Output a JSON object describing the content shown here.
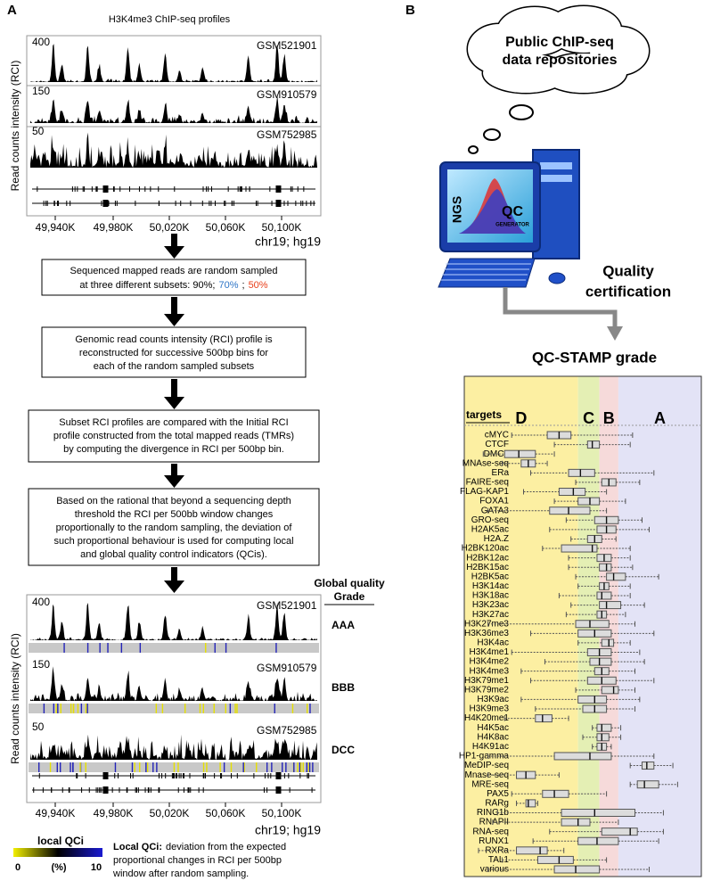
{
  "panel_a": {
    "label": "A",
    "title": "H3K4me3 ChIP-seq profiles",
    "y_axis_label": "Read counts intensity (RCI)",
    "tracks": [
      {
        "scale": "400",
        "sample": "GSM521901",
        "grade": "AAA"
      },
      {
        "scale": "150",
        "sample": "GSM910579",
        "grade": "BBB"
      },
      {
        "scale": "50",
        "sample": "GSM752985",
        "grade": "DCC"
      }
    ],
    "x_tick_labels": [
      "49,940K",
      "49,980K",
      "50,020K",
      "50,060K",
      "50,100K"
    ],
    "region": "chr19; hg19",
    "step_1": {
      "line_1": "Sequenced mapped reads are random sampled",
      "line_2_start": "at three different subsets: 90%;",
      "subset_70": "70%",
      "separator": ";",
      "subset_50": "50%"
    },
    "steps": [
      [
        "Genomic read counts intensity (RCI) profile is",
        "reconstructed for successive 500bp bins for",
        "each of the random sampled subsets"
      ],
      [
        "Subset RCI profiles are compared with the Initial RCI",
        "profile constructed from the total mapped reads (TMRs)",
        "by computing the divergence in RCI per 500bp bin."
      ],
      [
        "Based on the rational that beyond a sequencing depth",
        "threshold the RCI per 500bb window changes",
        "proportionally to the random sampling, the deviation of",
        "such proportional behaviour is used for computing local",
        "and global quality control indicators (QCis)."
      ]
    ],
    "grade_header": [
      "Global quality",
      "Grade"
    ],
    "legend": {
      "title": "local QCi",
      "min": "0",
      "unit": "(%)",
      "max": "10"
    },
    "note": {
      "term": "Local QCi:",
      "lines": [
        "deviation from the expected",
        "proportional changes in RCI per 500bp",
        "window after random sampling."
      ]
    }
  },
  "panel_b": {
    "label": "B",
    "cloud": [
      "Public ChIP-seq",
      "data repositories"
    ],
    "software": [
      "NGS",
      "QC",
      "GENERATOR"
    ],
    "certification": [
      "Quality",
      "certification"
    ],
    "stamp_title": "QC-STAMP grade"
  },
  "chart_data": {
    "type": "boxplot",
    "axis_title": "targets",
    "xlim": [
      0,
      100
    ],
    "grades": [
      {
        "name": "D",
        "range": [
          0,
          48
        ],
        "color": "#fcefa2"
      },
      {
        "name": "C",
        "range": [
          48,
          57
        ],
        "color": "#e4efb4"
      },
      {
        "name": "B",
        "range": [
          57,
          65
        ],
        "color": "#f6dada"
      },
      {
        "name": "A",
        "range": [
          65,
          100
        ],
        "color": "#e3e3f6"
      }
    ],
    "categories": [
      "cMYC",
      "CTCF",
      "DMC1",
      "MNAse-seq",
      "ERa",
      "FAIRE-seq",
      "FLAG-KAP1",
      "FOXA1",
      "GATA3",
      "GRO-seq",
      "H2AK5ac",
      "H2A.Z",
      "H2BK120ac",
      "H2BK12ac",
      "H2BK15ac",
      "H2BK5ac",
      "H3K14ac",
      "H3K18ac",
      "H3K23ac",
      "H3K27ac",
      "H3K27me3",
      "H3K36me3",
      "H3K4ac",
      "H3K4me1",
      "H3K4me2",
      "H3K4me3",
      "H3K79me1",
      "H3K79me2",
      "H3K9ac",
      "H3K9me3",
      "H4K20me1",
      "H4K5ac",
      "H4K8ac",
      "H4K91ac",
      "HP1-gamma",
      "MeDIP-seq",
      "Mnase-seq",
      "MRE-seq",
      "PAX5",
      "RARg",
      "RING1b",
      "RNAPII",
      "RNA-seq",
      "RUNX1",
      "RXRa",
      "TAL1",
      "various"
    ],
    "boxes": [
      [
        20,
        35,
        40,
        45,
        71
      ],
      [
        38,
        52,
        54,
        57,
        70
      ],
      [
        8,
        17,
        23,
        30,
        38
      ],
      [
        16,
        24,
        27,
        30,
        35
      ],
      [
        28,
        44,
        49,
        55,
        80
      ],
      [
        47,
        58,
        61,
        64,
        74
      ],
      [
        25,
        40,
        46,
        51,
        60
      ],
      [
        38,
        48,
        53,
        57,
        68
      ],
      [
        10,
        36,
        44,
        53,
        60
      ],
      [
        43,
        55,
        60,
        65,
        75
      ],
      [
        36,
        56,
        60,
        64,
        78
      ],
      [
        45,
        52,
        55,
        58,
        64
      ],
      [
        33,
        41,
        54,
        56,
        70
      ],
      [
        44,
        56,
        59,
        62,
        70
      ],
      [
        44,
        57,
        60,
        62,
        71
      ],
      [
        47,
        60,
        63,
        68,
        82
      ],
      [
        48,
        57,
        59,
        61,
        70
      ],
      [
        40,
        56,
        58,
        62,
        70
      ],
      [
        45,
        57,
        60,
        66,
        76
      ],
      [
        43,
        56,
        58,
        60,
        68
      ],
      [
        10,
        47,
        53,
        61,
        72
      ],
      [
        28,
        48,
        55,
        62,
        80
      ],
      [
        48,
        58,
        61,
        63,
        70
      ],
      [
        20,
        52,
        57,
        62,
        74
      ],
      [
        34,
        53,
        57,
        62,
        76
      ],
      [
        24,
        55,
        58,
        61,
        72
      ],
      [
        28,
        52,
        58,
        64,
        80
      ],
      [
        47,
        58,
        63,
        65,
        72
      ],
      [
        24,
        48,
        55,
        60,
        74
      ],
      [
        30,
        50,
        55,
        60,
        72
      ],
      [
        17,
        30,
        33,
        37,
        44
      ],
      [
        54,
        56,
        58,
        62,
        66
      ],
      [
        50,
        56,
        58,
        61,
        66
      ],
      [
        54,
        56,
        58,
        60,
        62
      ],
      [
        10,
        38,
        53,
        62,
        80
      ],
      [
        70,
        75,
        77,
        80,
        88
      ],
      [
        10,
        22,
        26,
        30,
        40
      ],
      [
        70,
        73,
        76,
        82,
        90
      ],
      [
        20,
        33,
        38,
        44,
        60
      ],
      [
        22,
        26,
        27,
        30,
        31
      ],
      [
        14,
        41,
        55,
        72,
        84
      ],
      [
        12,
        41,
        48,
        53,
        65
      ],
      [
        36,
        58,
        70,
        73,
        84
      ],
      [
        29,
        48,
        56,
        65,
        82
      ],
      [
        6,
        22,
        32,
        35,
        42
      ],
      [
        16,
        31,
        40,
        46,
        60
      ],
      [
        10,
        38,
        47,
        57,
        78
      ]
    ]
  }
}
